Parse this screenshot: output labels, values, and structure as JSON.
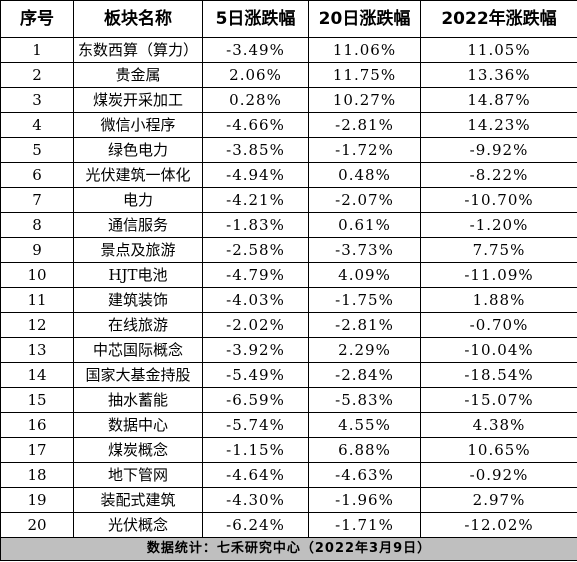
{
  "headers": [
    "序号",
    "板块名称",
    "5日涨跌幅",
    "20日涨跌幅",
    "2022年涨跌幅"
  ],
  "rows": [
    [
      "1",
      "东数西算（算力）",
      "-3.49%",
      "11.06%",
      "11.05%"
    ],
    [
      "2",
      "贵金属",
      "2.06%",
      "11.75%",
      "13.36%"
    ],
    [
      "3",
      "煤炭开采加工",
      "0.28%",
      "10.27%",
      "14.87%"
    ],
    [
      "4",
      "微信小程序",
      "-4.66%",
      "-2.81%",
      "14.23%"
    ],
    [
      "5",
      "绿色电力",
      "-3.85%",
      "-1.72%",
      "-9.92%"
    ],
    [
      "6",
      "光伏建筑一体化",
      "-4.94%",
      "0.48%",
      "-8.22%"
    ],
    [
      "7",
      "电力",
      "-4.21%",
      "-2.07%",
      "-10.70%"
    ],
    [
      "8",
      "通信服务",
      "-1.83%",
      "0.61%",
      "-1.20%"
    ],
    [
      "9",
      "景点及旅游",
      "-2.58%",
      "-3.73%",
      "7.75%"
    ],
    [
      "10",
      "HJT电池",
      "-4.79%",
      "4.09%",
      "-11.09%"
    ],
    [
      "11",
      "建筑装饰",
      "-4.03%",
      "-1.75%",
      "1.88%"
    ],
    [
      "12",
      "在线旅游",
      "-2.02%",
      "-2.81%",
      "-0.70%"
    ],
    [
      "13",
      "中芯国际概念",
      "-3.92%",
      "2.29%",
      "-10.04%"
    ],
    [
      "14",
      "国家大基金持股",
      "-5.49%",
      "-2.84%",
      "-18.54%"
    ],
    [
      "15",
      "抽水蓄能",
      "-6.59%",
      "-5.83%",
      "-15.07%"
    ],
    [
      "16",
      "数据中心",
      "-5.74%",
      "4.55%",
      "4.38%"
    ],
    [
      "17",
      "煤炭概念",
      "-1.15%",
      "6.88%",
      "10.65%"
    ],
    [
      "18",
      "地下管网",
      "-4.64%",
      "-4.63%",
      "-0.92%"
    ],
    [
      "19",
      "装配式建筑",
      "-4.30%",
      "-1.96%",
      "2.97%"
    ],
    [
      "20",
      "光伏概念",
      "-6.24%",
      "-1.71%",
      "-12.02%"
    ]
  ],
  "footer": "数据统计：七禾研究中心（2022年3月9日）",
  "colors": {
    "border": "#000000",
    "footer_bg": "#bfbfbf",
    "background": "#ffffff"
  }
}
